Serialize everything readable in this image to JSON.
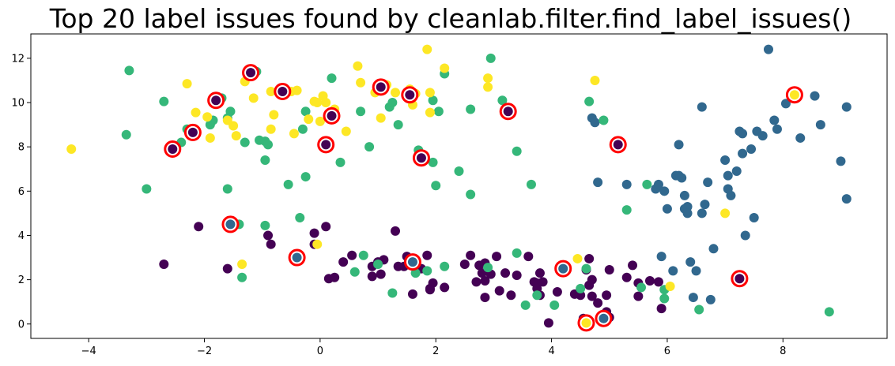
{
  "chart_data": {
    "type": "scatter",
    "title": "Top 20 label issues found by cleanlab.filter.find_label_issues()",
    "xlabel": "",
    "ylabel": "",
    "xlim": [
      -5,
      9.8
    ],
    "ylim": [
      -0.65,
      13.1
    ],
    "xticks": [
      -4,
      -2,
      0,
      2,
      4,
      6,
      8
    ],
    "yticks": [
      0,
      2,
      4,
      6,
      8,
      10,
      12
    ],
    "grid": false,
    "legend": "none",
    "colors": {
      "class_0": "#440154",
      "class_1": "#31688e",
      "class_2": "#35b779",
      "class_3": "#fde725",
      "highlight_ring": "#ff0000"
    },
    "points": {
      "class_0": [
        [
          -2.7,
          2.7
        ],
        [
          -2.1,
          4.4
        ],
        [
          -1.6,
          2.5
        ],
        [
          -0.9,
          4.0
        ],
        [
          -0.85,
          3.6
        ],
        [
          -0.1,
          4.1
        ],
        [
          0.1,
          4.4
        ],
        [
          -0.1,
          3.6
        ],
        [
          0.15,
          2.05
        ],
        [
          0.25,
          2.1
        ],
        [
          0.4,
          2.8
        ],
        [
          0.55,
          3.1
        ],
        [
          0.9,
          2.6
        ],
        [
          1.0,
          2.8
        ],
        [
          0.9,
          2.15
        ],
        [
          1.05,
          2.25
        ],
        [
          1.1,
          2.9
        ],
        [
          1.3,
          4.2
        ],
        [
          1.35,
          2.6
        ],
        [
          1.5,
          3.05
        ],
        [
          1.45,
          2.6
        ],
        [
          1.6,
          2.85
        ],
        [
          1.6,
          1.35
        ],
        [
          1.75,
          2.5
        ],
        [
          1.85,
          3.1
        ],
        [
          1.9,
          1.6
        ],
        [
          1.95,
          1.85
        ],
        [
          1.9,
          1.55
        ],
        [
          2.15,
          1.65
        ],
        [
          2.5,
          2.7
        ],
        [
          2.6,
          3.1
        ],
        [
          2.7,
          1.9
        ],
        [
          2.75,
          2.65
        ],
        [
          2.85,
          2.75
        ],
        [
          2.8,
          2.3
        ],
        [
          2.85,
          1.2
        ],
        [
          2.85,
          1.95
        ],
        [
          2.95,
          2.25
        ],
        [
          3.05,
          3.05
        ],
        [
          3.1,
          1.5
        ],
        [
          3.2,
          2.3
        ],
        [
          3.3,
          1.3
        ],
        [
          3.4,
          2.2
        ],
        [
          3.6,
          3.05
        ],
        [
          3.7,
          1.9
        ],
        [
          3.75,
          1.85
        ],
        [
          3.8,
          2.3
        ],
        [
          3.75,
          1.6
        ],
        [
          3.8,
          1.3
        ],
        [
          3.85,
          1.9
        ],
        [
          3.95,
          0.05
        ],
        [
          4.1,
          1.45
        ],
        [
          4.25,
          2.55
        ],
        [
          4.4,
          1.35
        ],
        [
          4.5,
          1.3
        ],
        [
          4.55,
          0.25
        ],
        [
          4.6,
          2.45
        ],
        [
          4.6,
          0.05
        ],
        [
          4.65,
          1.75
        ],
        [
          4.65,
          2.95
        ],
        [
          4.7,
          1.25
        ],
        [
          4.7,
          2.0
        ],
        [
          4.8,
          0.95
        ],
        [
          4.95,
          1.3
        ],
        [
          4.95,
          0.55
        ],
        [
          5.0,
          2.45
        ],
        [
          5.0,
          0.3
        ],
        [
          5.3,
          2.1
        ],
        [
          5.4,
          2.65
        ],
        [
          5.5,
          1.25
        ],
        [
          5.5,
          1.85
        ],
        [
          5.7,
          1.95
        ],
        [
          5.85,
          1.9
        ],
        [
          5.9,
          0.7
        ]
      ],
      "class_1": [
        [
          4.7,
          9.3
        ],
        [
          4.75,
          9.1
        ],
        [
          4.8,
          6.4
        ],
        [
          5.3,
          6.3
        ],
        [
          5.8,
          6.1
        ],
        [
          5.85,
          6.3
        ],
        [
          5.95,
          6.0
        ],
        [
          6.0,
          5.2
        ],
        [
          6.2,
          6.7
        ],
        [
          6.25,
          6.6
        ],
        [
          6.3,
          5.8
        ],
        [
          6.3,
          5.2
        ],
        [
          6.35,
          5.3
        ],
        [
          6.35,
          5.0
        ],
        [
          6.4,
          2.8
        ],
        [
          6.5,
          2.4
        ],
        [
          6.6,
          5.0
        ],
        [
          6.6,
          9.8
        ],
        [
          6.65,
          5.4
        ],
        [
          6.7,
          6.4
        ],
        [
          6.8,
          3.4
        ],
        [
          6.45,
          1.2
        ],
        [
          6.75,
          1.1
        ],
        [
          7.0,
          7.4
        ],
        [
          7.05,
          6.7
        ],
        [
          7.05,
          6.1
        ],
        [
          7.1,
          5.8
        ],
        [
          7.2,
          6.9
        ],
        [
          7.25,
          8.7
        ],
        [
          7.3,
          8.6
        ],
        [
          7.3,
          7.7
        ],
        [
          7.35,
          4.0
        ],
        [
          7.45,
          7.9
        ],
        [
          7.5,
          4.8
        ],
        [
          7.55,
          8.7
        ],
        [
          7.65,
          8.5
        ],
        [
          7.75,
          12.4
        ],
        [
          7.85,
          9.2
        ],
        [
          7.9,
          8.8
        ],
        [
          8.05,
          9.95
        ],
        [
          8.3,
          8.4
        ],
        [
          8.55,
          10.3
        ],
        [
          8.65,
          9.0
        ],
        [
          9.0,
          7.35
        ],
        [
          9.1,
          9.8
        ],
        [
          9.1,
          5.65
        ],
        [
          5.9,
          3.05
        ],
        [
          6.1,
          2.4
        ],
        [
          6.2,
          8.1
        ],
        [
          6.15,
          6.7
        ]
      ],
      "class_2": [
        [
          -3.3,
          11.45
        ],
        [
          -3.35,
          8.55
        ],
        [
          -3.0,
          6.1
        ],
        [
          -2.7,
          10.05
        ],
        [
          -2.4,
          8.2
        ],
        [
          -2.3,
          8.8
        ],
        [
          -1.9,
          9.0
        ],
        [
          -1.85,
          9.2
        ],
        [
          -1.7,
          10.2
        ],
        [
          -1.6,
          9.3
        ],
        [
          -1.55,
          9.6
        ],
        [
          -1.6,
          6.1
        ],
        [
          -1.4,
          4.5
        ],
        [
          -1.35,
          2.1
        ],
        [
          -1.3,
          8.2
        ],
        [
          -1.1,
          11.4
        ],
        [
          -1.05,
          8.3
        ],
        [
          -0.95,
          8.25
        ],
        [
          -0.9,
          8.1
        ],
        [
          -0.95,
          7.4
        ],
        [
          -0.95,
          4.45
        ],
        [
          -0.65,
          10.5
        ],
        [
          -0.55,
          6.3
        ],
        [
          -0.35,
          4.8
        ],
        [
          -0.3,
          8.8
        ],
        [
          -0.25,
          9.6
        ],
        [
          -0.25,
          6.65
        ],
        [
          0.2,
          11.1
        ],
        [
          0.35,
          7.3
        ],
        [
          0.7,
          9.6
        ],
        [
          0.75,
          3.1
        ],
        [
          0.85,
          8.0
        ],
        [
          1.2,
          9.8
        ],
        [
          1.25,
          10.0
        ],
        [
          1.35,
          9.0
        ],
        [
          1.7,
          7.85
        ],
        [
          1.95,
          10.1
        ],
        [
          1.95,
          7.3
        ],
        [
          2.0,
          6.25
        ],
        [
          2.05,
          9.6
        ],
        [
          2.15,
          11.3
        ],
        [
          2.15,
          2.6
        ],
        [
          2.4,
          6.9
        ],
        [
          2.6,
          9.7
        ],
        [
          2.6,
          5.85
        ],
        [
          2.9,
          2.55
        ],
        [
          2.95,
          12.0
        ],
        [
          3.15,
          10.1
        ],
        [
          3.4,
          7.8
        ],
        [
          3.4,
          3.2
        ],
        [
          3.55,
          0.85
        ],
        [
          3.65,
          6.3
        ],
        [
          3.75,
          1.3
        ],
        [
          4.05,
          0.85
        ],
        [
          4.5,
          1.6
        ],
        [
          4.6,
          2.5
        ],
        [
          4.65,
          10.05
        ],
        [
          4.9,
          9.2
        ],
        [
          5.3,
          5.15
        ],
        [
          5.55,
          1.65
        ],
        [
          5.65,
          6.3
        ],
        [
          5.95,
          1.55
        ],
        [
          5.95,
          1.15
        ],
        [
          6.55,
          0.65
        ],
        [
          8.8,
          0.55
        ],
        [
          1.0,
          2.7
        ],
        [
          1.85,
          2.4
        ],
        [
          0.6,
          2.35
        ],
        [
          1.25,
          1.4
        ],
        [
          1.65,
          2.3
        ]
      ],
      "class_3": [
        [
          -4.3,
          7.9
        ],
        [
          -2.3,
          10.85
        ],
        [
          -2.15,
          8.65
        ],
        [
          -2.15,
          9.55
        ],
        [
          -1.95,
          9.35
        ],
        [
          -1.9,
          8.4
        ],
        [
          -1.6,
          9.2
        ],
        [
          -1.5,
          8.95
        ],
        [
          -1.45,
          8.5
        ],
        [
          -1.35,
          2.7
        ],
        [
          -1.3,
          10.95
        ],
        [
          -1.15,
          10.2
        ],
        [
          -0.85,
          10.5
        ],
        [
          -0.85,
          8.8
        ],
        [
          -0.8,
          9.45
        ],
        [
          -0.5,
          10.5
        ],
        [
          -0.45,
          8.6
        ],
        [
          -0.4,
          10.55
        ],
        [
          -0.2,
          9.25
        ],
        [
          -0.1,
          10.05
        ],
        [
          -0.05,
          10.0
        ],
        [
          0.0,
          9.15
        ],
        [
          0.05,
          10.3
        ],
        [
          0.1,
          10.0
        ],
        [
          0.25,
          9.7
        ],
        [
          0.45,
          8.7
        ],
        [
          0.65,
          11.65
        ],
        [
          0.7,
          10.9
        ],
        [
          0.95,
          10.45
        ],
        [
          1.05,
          9.3
        ],
        [
          1.15,
          10.8
        ],
        [
          1.3,
          10.45
        ],
        [
          1.55,
          10.6
        ],
        [
          1.6,
          9.9
        ],
        [
          1.65,
          10.4
        ],
        [
          1.85,
          12.4
        ],
        [
          1.9,
          10.45
        ],
        [
          1.9,
          9.55
        ],
        [
          2.15,
          11.55
        ],
        [
          2.9,
          11.1
        ],
        [
          2.9,
          10.7
        ],
        [
          4.45,
          2.95
        ],
        [
          4.75,
          11.0
        ],
        [
          6.05,
          1.7
        ],
        [
          7.0,
          5.0
        ],
        [
          -0.05,
          3.6
        ]
      ]
    },
    "issues": [
      {
        "x": -2.55,
        "y": 7.9,
        "given_label": "class_0"
      },
      {
        "x": -2.2,
        "y": 8.65,
        "given_label": "class_0"
      },
      {
        "x": -1.8,
        "y": 10.1,
        "given_label": "class_0"
      },
      {
        "x": -1.2,
        "y": 11.35,
        "given_label": "class_0"
      },
      {
        "x": -0.65,
        "y": 10.5,
        "given_label": "class_0"
      },
      {
        "x": 0.1,
        "y": 8.1,
        "given_label": "class_0"
      },
      {
        "x": 0.2,
        "y": 9.4,
        "given_label": "class_0"
      },
      {
        "x": 1.05,
        "y": 10.7,
        "given_label": "class_0"
      },
      {
        "x": 1.55,
        "y": 10.35,
        "given_label": "class_0"
      },
      {
        "x": 1.75,
        "y": 7.5,
        "given_label": "class_0"
      },
      {
        "x": 3.25,
        "y": 9.6,
        "given_label": "class_0"
      },
      {
        "x": 5.15,
        "y": 8.1,
        "given_label": "class_0"
      },
      {
        "x": -1.55,
        "y": 4.5,
        "given_label": "class_1"
      },
      {
        "x": -0.4,
        "y": 3.0,
        "given_label": "class_1"
      },
      {
        "x": 1.6,
        "y": 2.8,
        "given_label": "class_1"
      },
      {
        "x": 4.2,
        "y": 2.5,
        "given_label": "class_1"
      },
      {
        "x": 4.9,
        "y": 0.25,
        "given_label": "class_1"
      },
      {
        "x": 7.25,
        "y": 2.05,
        "given_label": "class_0"
      },
      {
        "x": 8.2,
        "y": 10.35,
        "given_label": "class_3"
      },
      {
        "x": 4.6,
        "y": 0.05,
        "given_label": "class_3"
      }
    ]
  }
}
